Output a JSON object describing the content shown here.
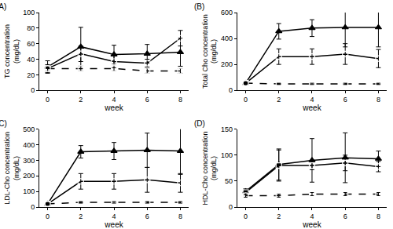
{
  "chart_data": [
    {
      "type": "line",
      "title": "(A)",
      "x_label": "week",
      "y_label": "TG concentration (mg/dL)",
      "x": [
        0,
        2,
        4,
        6,
        8
      ],
      "xlim": [
        -0.5,
        8.5
      ],
      "xticks": [
        0,
        2,
        4,
        6,
        8
      ],
      "ylim": [
        0,
        100
      ],
      "yticks": [
        0,
        20,
        40,
        60,
        80,
        100
      ],
      "grid": false,
      "series": [
        {
          "color": "#000000",
          "marker": "triangle-up",
          "line_style": "solid",
          "values": [
            30,
            56,
            46,
            47,
            49
          ],
          "error": [
            8,
            25,
            12,
            12,
            18
          ]
        },
        {
          "color": "#000000",
          "marker": "square-open",
          "line_style": "solid",
          "values": [
            28,
            47,
            37,
            35,
            67
          ],
          "error": [
            5,
            10,
            8,
            5,
            10
          ]
        },
        {
          "color": "#000000",
          "marker": "circle-open",
          "line_style": "dash",
          "values": [
            28,
            28,
            28,
            25,
            25
          ],
          "error": [
            3,
            3,
            3,
            3,
            3
          ]
        }
      ]
    },
    {
      "type": "line",
      "title": "(B)",
      "x_label": "week",
      "y_label": "Total Cho concentration (mg/dL)",
      "x": [
        0,
        2,
        4,
        6,
        8
      ],
      "xlim": [
        -0.5,
        8.5
      ],
      "xticks": [
        0,
        2,
        4,
        6,
        8
      ],
      "ylim": [
        0,
        600
      ],
      "yticks": [
        0,
        200,
        400,
        600
      ],
      "grid": false,
      "series": [
        {
          "color": "#000000",
          "marker": "triangle-up",
          "line_style": "solid",
          "values": [
            55,
            455,
            480,
            485,
            485
          ],
          "error": [
            10,
            60,
            65,
            150,
            150
          ]
        },
        {
          "color": "#000000",
          "marker": "square-open",
          "line_style": "solid",
          "values": [
            55,
            260,
            260,
            280,
            245
          ],
          "error": [
            10,
            60,
            60,
            80,
            70
          ]
        },
        {
          "color": "#000000",
          "marker": "circle-open",
          "line_style": "dash",
          "values": [
            55,
            50,
            50,
            50,
            50
          ],
          "error": [
            5,
            5,
            5,
            5,
            5
          ]
        }
      ]
    },
    {
      "type": "line",
      "title": "(C)",
      "x_label": "week",
      "y_label": "LDL-Cho concentration (mg/dL)",
      "x": [
        0,
        2,
        4,
        6,
        8
      ],
      "xlim": [
        -0.5,
        8.5
      ],
      "xticks": [
        0,
        2,
        4,
        6,
        8
      ],
      "ylim": [
        0,
        500
      ],
      "yticks": [
        0,
        100,
        200,
        300,
        400,
        500
      ],
      "grid": false,
      "series": [
        {
          "color": "#000000",
          "marker": "triangle-up",
          "line_style": "solid",
          "values": [
            20,
            355,
            360,
            365,
            360
          ],
          "error": [
            5,
            40,
            55,
            110,
            150
          ]
        },
        {
          "color": "#000000",
          "marker": "square-open",
          "line_style": "solid",
          "values": [
            20,
            165,
            165,
            175,
            155
          ],
          "error": [
            5,
            50,
            50,
            80,
            60
          ]
        },
        {
          "color": "#000000",
          "marker": "circle-open",
          "line_style": "dash",
          "values": [
            20,
            30,
            30,
            30,
            30
          ],
          "error": [
            5,
            5,
            5,
            5,
            5
          ]
        }
      ]
    },
    {
      "type": "line",
      "title": "(D)",
      "x_label": "week",
      "y_label": "HDL-Cho concentration (mg/dL)",
      "x": [
        0,
        2,
        4,
        6,
        8
      ],
      "xlim": [
        -0.5,
        8.5
      ],
      "xticks": [
        0,
        2,
        4,
        6,
        8
      ],
      "ylim": [
        0,
        150
      ],
      "yticks": [
        0,
        50,
        100,
        150
      ],
      "grid": false,
      "series": [
        {
          "color": "#000000",
          "marker": "triangle-up",
          "line_style": "solid",
          "values": [
            30,
            82,
            90,
            95,
            93
          ],
          "error": [
            5,
            30,
            42,
            48,
            15
          ]
        },
        {
          "color": "#000000",
          "marker": "square-open",
          "line_style": "solid",
          "values": [
            28,
            80,
            80,
            85,
            78
          ],
          "error": [
            5,
            30,
            8,
            15,
            10
          ]
        },
        {
          "color": "#000000",
          "marker": "circle-open",
          "line_style": "dash",
          "values": [
            22,
            22,
            25,
            25,
            25
          ],
          "error": [
            3,
            3,
            3,
            3,
            3
          ]
        }
      ]
    }
  ]
}
